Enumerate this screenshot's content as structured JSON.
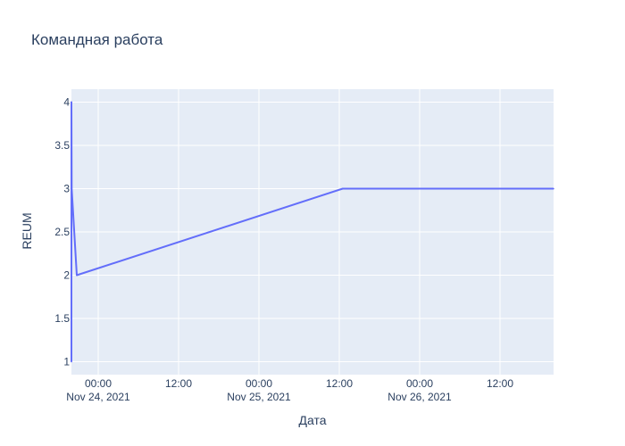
{
  "chart_data": {
    "type": "line",
    "title": "Командная работа",
    "xlabel": "Дата",
    "ylabel": "REUM",
    "ylim": [
      0.85,
      4.15
    ],
    "xlim": [
      "2021-11-23 20:00",
      "2021-11-26 20:00"
    ],
    "grid": true,
    "y_ticks": [
      1,
      1.5,
      2,
      2.5,
      3,
      3.5,
      4
    ],
    "y_tick_labels": [
      "1",
      "1.5",
      "2",
      "2.5",
      "3",
      "3.5",
      "4"
    ],
    "x_ticks": [
      {
        "value": "2021-11-24 00:00",
        "label": "00:00",
        "sublabel": "Nov 24, 2021"
      },
      {
        "value": "2021-11-24 12:00",
        "label": "12:00",
        "sublabel": ""
      },
      {
        "value": "2021-11-25 00:00",
        "label": "00:00",
        "sublabel": "Nov 25, 2021"
      },
      {
        "value": "2021-11-25 12:00",
        "label": "12:00",
        "sublabel": ""
      },
      {
        "value": "2021-11-26 00:00",
        "label": "00:00",
        "sublabel": "Nov 26, 2021"
      },
      {
        "value": "2021-11-26 12:00",
        "label": "12:00",
        "sublabel": ""
      }
    ],
    "series": [
      {
        "color": "#636efa",
        "points": [
          {
            "x": "2021-11-23 20:00",
            "y": 1
          },
          {
            "x": "2021-11-23 20:00",
            "y": 4
          },
          {
            "x": "2021-11-23 20:02",
            "y": 3
          },
          {
            "x": "2021-11-23 20:48",
            "y": 2
          },
          {
            "x": "2021-11-25 12:30",
            "y": 3
          },
          {
            "x": "2021-11-26 20:00",
            "y": 3
          }
        ]
      }
    ],
    "colors": {
      "plot_bg": "#e5ecf6",
      "grid": "#ffffff",
      "text": "#2a3f5f"
    }
  }
}
